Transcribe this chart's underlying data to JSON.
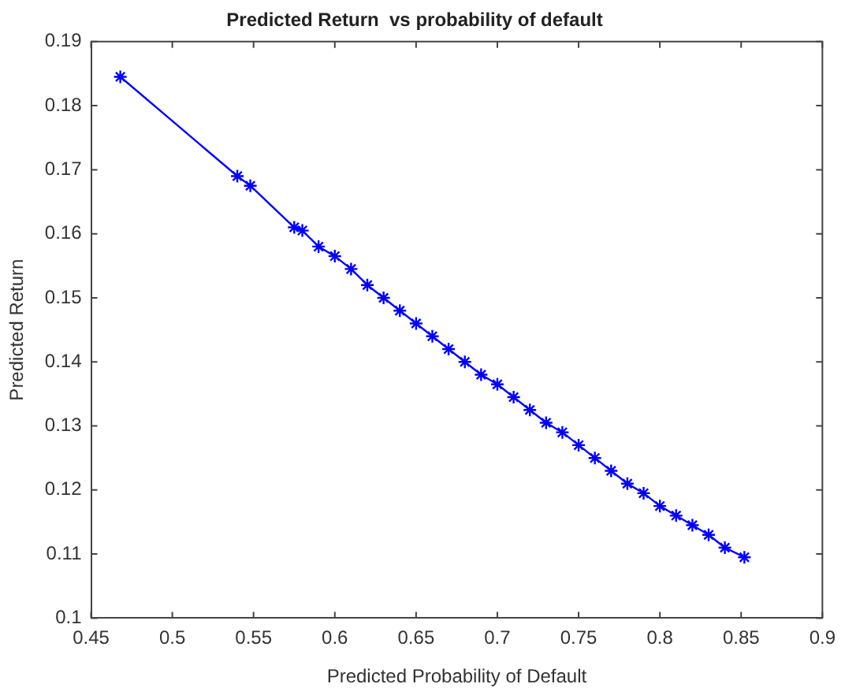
{
  "chart_data": {
    "type": "line",
    "title": "Predicted Return  vs probability of default",
    "xlabel": "Predicted Probability of Default",
    "ylabel": "Predicted Return",
    "series": [
      {
        "color": "#0000ff",
        "x": [
          0.468,
          0.54,
          0.548,
          0.575,
          0.58,
          0.59,
          0.6,
          0.61,
          0.62,
          0.63,
          0.64,
          0.65,
          0.66,
          0.67,
          0.68,
          0.69,
          0.7,
          0.71,
          0.72,
          0.73,
          0.74,
          0.75,
          0.76,
          0.77,
          0.78,
          0.79,
          0.8,
          0.81,
          0.82,
          0.83,
          0.84,
          0.852
        ],
        "values": [
          0.1845,
          0.169,
          0.1675,
          0.161,
          0.1605,
          0.158,
          0.1565,
          0.1545,
          0.152,
          0.15,
          0.148,
          0.146,
          0.144,
          0.142,
          0.14,
          0.138,
          0.1365,
          0.1345,
          0.1325,
          0.1305,
          0.129,
          0.127,
          0.125,
          0.123,
          0.121,
          0.1195,
          0.1175,
          0.116,
          0.1145,
          0.113,
          0.111,
          0.1095
        ]
      }
    ],
    "xlim": [
      0.45,
      0.9
    ],
    "xticks": [
      0.45,
      0.5,
      0.55,
      0.6,
      0.65,
      0.7,
      0.75,
      0.8,
      0.85,
      0.9
    ],
    "ylim": [
      0.1,
      0.19
    ],
    "yticks": [
      0.1,
      0.11,
      0.12,
      0.13,
      0.14,
      0.15,
      0.16,
      0.17,
      0.18,
      0.19
    ],
    "grid": false,
    "legend": false,
    "marker": "cross",
    "line_style": "solid"
  }
}
